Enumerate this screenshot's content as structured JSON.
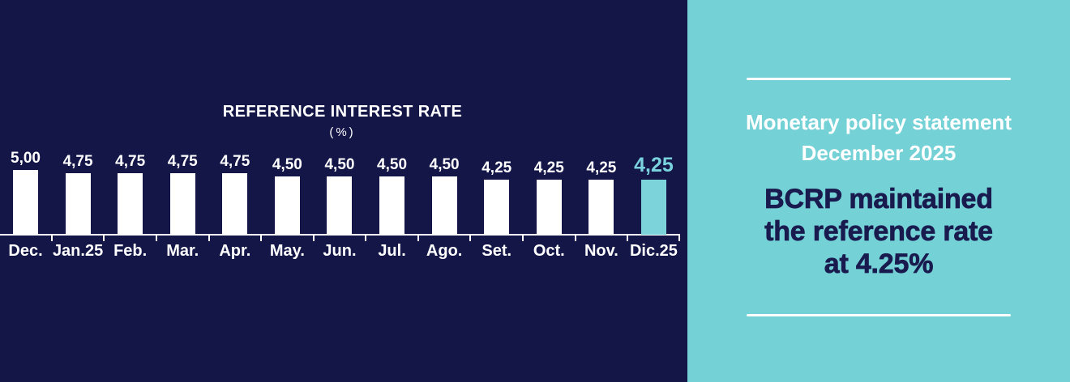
{
  "colors": {
    "navy_background": "#131647",
    "teal_panel": "#74d1d6",
    "white": "#ffffff",
    "bar_color": "#ffffff",
    "highlight_bar_color": "#7cd4da",
    "highlight_label_color": "#7ad2de",
    "headline_navy": "#191b4e"
  },
  "chart_data": {
    "type": "bar",
    "title": "REFERENCE INTEREST RATE",
    "subtitle": "(%)",
    "categories": [
      "Dec.",
      "Jan.25",
      "Feb.",
      "Mar.",
      "Apr.",
      "May.",
      "Jun.",
      "Jul.",
      "Ago.",
      "Set.",
      "Oct.",
      "Nov.",
      "Dic.25"
    ],
    "values": [
      5.0,
      4.75,
      4.75,
      4.75,
      4.75,
      4.5,
      4.5,
      4.5,
      4.5,
      4.25,
      4.25,
      4.25,
      4.25
    ],
    "value_labels": [
      "5,00",
      "4,75",
      "4,75",
      "4,75",
      "4,75",
      "4,50",
      "4,50",
      "4,50",
      "4,50",
      "4,25",
      "4,25",
      "4,25",
      "4,25"
    ],
    "highlight_index": 12,
    "bar_color": "#ffffff",
    "highlight_bar_color": "#7cd4da",
    "highlight_label_color": "#7ad2de",
    "xlabel": "",
    "ylabel": "",
    "ylim": [
      0,
      5.3
    ],
    "grid": false,
    "legend": false
  },
  "panel": {
    "statement_line1": "Monetary policy statement",
    "statement_line2": "December 2025",
    "headline_line1": "BCRP maintained",
    "headline_line2": "the reference rate",
    "headline_line3": "at 4.25%"
  }
}
